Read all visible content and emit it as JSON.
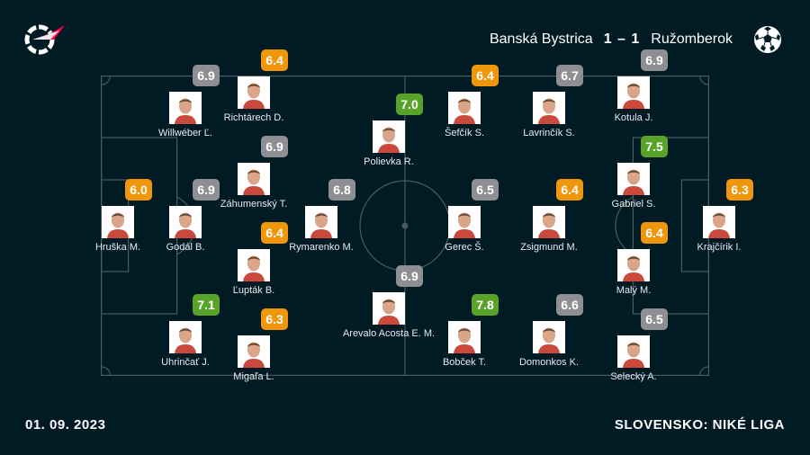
{
  "header": {
    "home_team": "Banská Bystrica",
    "score": "1 – 1",
    "away_team": "Ružomberok"
  },
  "footer": {
    "date": "01. 09. 2023",
    "league": "SLOVENSKO: NIKÉ LIGA"
  },
  "colors": {
    "background": "#001b24",
    "pitch_lines": "#4a5a61",
    "rating_gray": "#8d8f92",
    "rating_orange": "#f0960a",
    "rating_green": "#5aa32b",
    "logo_red": "#ff0046"
  },
  "players": [
    {
      "name": "Hruška M.",
      "rating": "6.0",
      "tier": "orange"
    },
    {
      "name": "Willwéber Ľ.",
      "rating": "6.9",
      "tier": "gray"
    },
    {
      "name": "Godál B.",
      "rating": "6.9",
      "tier": "gray"
    },
    {
      "name": "Uhrinčať J.",
      "rating": "7.1",
      "tier": "green"
    },
    {
      "name": "Richtárech D.",
      "rating": "6.4",
      "tier": "orange"
    },
    {
      "name": "Záhumenský T.",
      "rating": "6.9",
      "tier": "gray"
    },
    {
      "name": "Ľupták B.",
      "rating": "6.4",
      "tier": "orange"
    },
    {
      "name": "Migaľa L.",
      "rating": "6.3",
      "tier": "orange"
    },
    {
      "name": "Rymarenko M.",
      "rating": "6.8",
      "tier": "gray"
    },
    {
      "name": "Polievka R.",
      "rating": "7.0",
      "tier": "green"
    },
    {
      "name": "Arevalo Acosta E. M.",
      "rating": "6.9",
      "tier": "gray"
    },
    {
      "name": "Šefčík S.",
      "rating": "6.4",
      "tier": "orange"
    },
    {
      "name": "Gerec Š.",
      "rating": "6.5",
      "tier": "gray"
    },
    {
      "name": "Bobček T.",
      "rating": "7.8",
      "tier": "green"
    },
    {
      "name": "Lavrinčík S.",
      "rating": "6.7",
      "tier": "gray"
    },
    {
      "name": "Zsigmund M.",
      "rating": "6.4",
      "tier": "orange"
    },
    {
      "name": "Domonkos K.",
      "rating": "6.6",
      "tier": "gray"
    },
    {
      "name": "Kotula J.",
      "rating": "6.9",
      "tier": "gray"
    },
    {
      "name": "Gabriel S.",
      "rating": "7.5",
      "tier": "green"
    },
    {
      "name": "Malý M.",
      "rating": "6.4",
      "tier": "orange"
    },
    {
      "name": "Selecký A.",
      "rating": "6.5",
      "tier": "gray"
    },
    {
      "name": "Krajčírik I.",
      "rating": "6.3",
      "tier": "orange"
    }
  ]
}
